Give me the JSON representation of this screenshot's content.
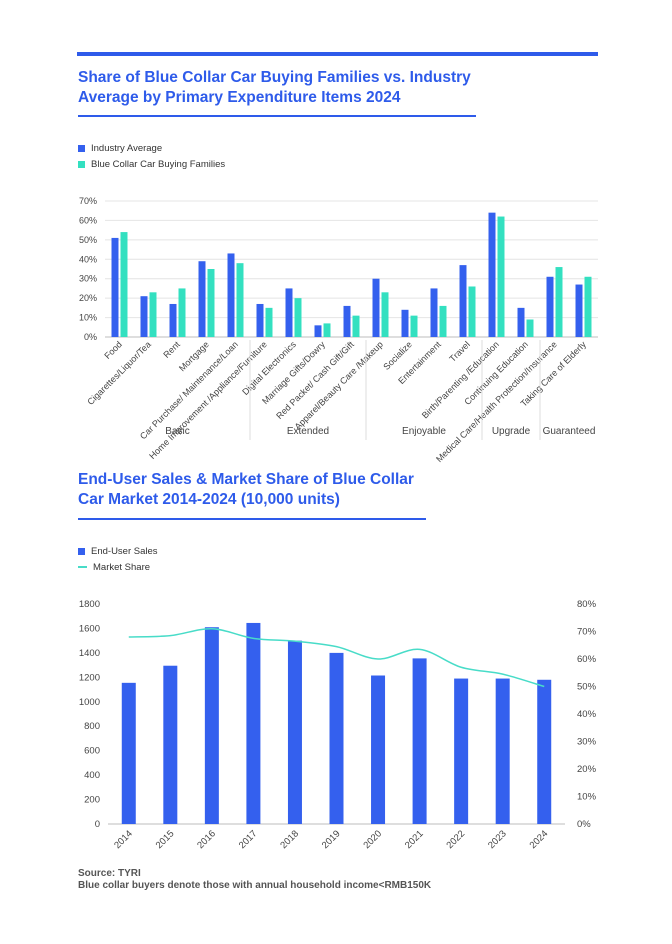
{
  "colors": {
    "accent": "#2e5bea",
    "series_a": "#3460ee",
    "series_b": "#33e0c0",
    "line": "#48dcc8"
  },
  "chart_data": [
    {
      "type": "bar",
      "title": "Share of Blue Collar Car Buying Families vs. Industry Average by Primary Expenditure Items 2024",
      "legend": "top-left",
      "categories": [
        "Food",
        "Cigarettes/Liquor/Tea",
        "Rent",
        "Mortgage",
        "Car Purchase/ Maintenance/Loan",
        "Home Improvement /Appliance/Furniture",
        "Digital Electronics",
        "Marriage Gifts/Dowry",
        "Red Packet/ Cash Gift/Gift",
        "Apparel/Beauty Care /Makeup",
        "Socialize",
        "Entertainment",
        "Travel",
        "Birth/Parenting /Education",
        "Continuing Education",
        "Medical Care/Health Protection/Insurance",
        "Taking Care of Elderly"
      ],
      "groups": [
        {
          "label": "Basic",
          "start": 0,
          "end": 4
        },
        {
          "label": "Extended",
          "start": 5,
          "end": 8
        },
        {
          "label": "Enjoyable",
          "start": 9,
          "end": 12
        },
        {
          "label": "Upgrade",
          "start": 13,
          "end": 14
        },
        {
          "label": "Guaranteed",
          "start": 15,
          "end": 16
        }
      ],
      "series": [
        {
          "name": "Industry Average",
          "values": [
            51,
            21,
            17,
            39,
            43,
            17,
            25,
            6,
            16,
            30,
            14,
            25,
            37,
            64,
            15,
            31,
            27
          ]
        },
        {
          "name": "Blue Collar Car Buying Families",
          "values": [
            54,
            23,
            25,
            35,
            38,
            15,
            20,
            7,
            11,
            23,
            11,
            16,
            26,
            62,
            9,
            36,
            31
          ]
        }
      ],
      "ylim": [
        0,
        70
      ],
      "yticks": [
        "0%",
        "10%",
        "20%",
        "30%",
        "40%",
        "50%",
        "60%",
        "70%"
      ],
      "grid": true
    },
    {
      "type": "bar",
      "title": "End-User Sales & Market Share of Blue Collar Car Market 2014-2024 (10,000 units)",
      "legend": "top-left",
      "categories": [
        "2014",
        "2015",
        "2016",
        "2017",
        "2018",
        "2019",
        "2020",
        "2021",
        "2022",
        "2023",
        "2024"
      ],
      "series": [
        {
          "name": "End-User Sales",
          "type": "bar",
          "axis": "left",
          "values": [
            1155,
            1295,
            1610,
            1645,
            1500,
            1400,
            1215,
            1355,
            1190,
            1190,
            1180
          ]
        },
        {
          "name": "Market Share",
          "type": "line",
          "axis": "right",
          "values": [
            68,
            68.5,
            71,
            67.5,
            66.5,
            64.5,
            60,
            63.5,
            57,
            54.5,
            50
          ]
        }
      ],
      "ylim_left": [
        0,
        1800
      ],
      "yticks_left": [
        "0",
        "200",
        "400",
        "600",
        "800",
        "1000",
        "1200",
        "1400",
        "1600",
        "1800"
      ],
      "ylim_right": [
        0,
        80
      ],
      "yticks_right": [
        "0%",
        "10%",
        "20%",
        "30%",
        "40%",
        "50%",
        "60%",
        "70%",
        "80%"
      ],
      "grid": false
    }
  ],
  "footer": {
    "source": "Source: TYRI",
    "note": "Blue collar buyers denote those with annual household income<RMB150K"
  }
}
